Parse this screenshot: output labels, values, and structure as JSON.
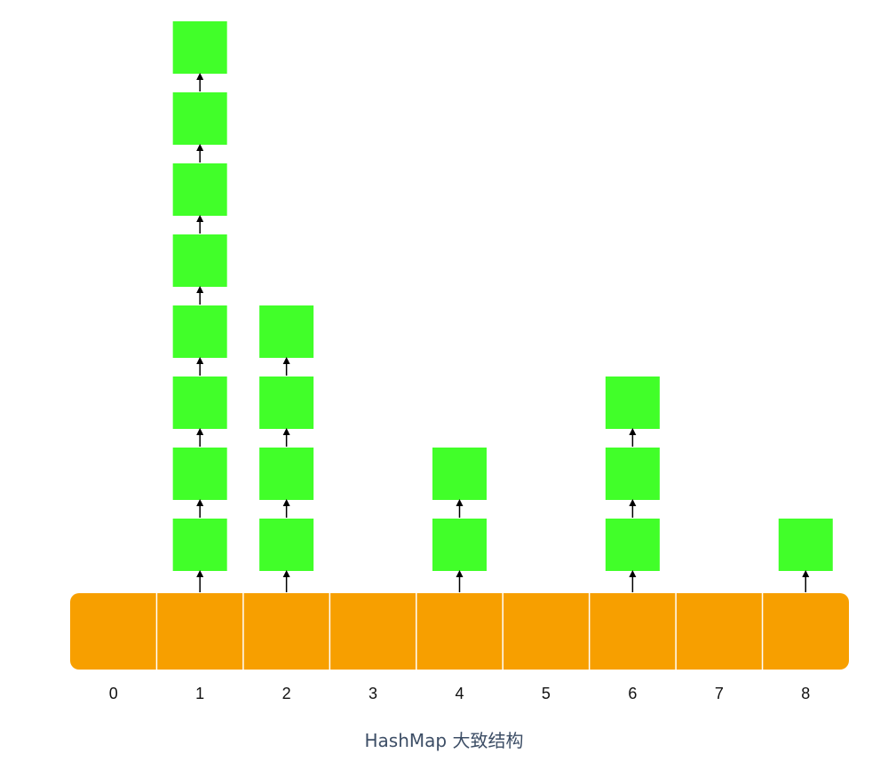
{
  "colors": {
    "array_fill": "#f79f00",
    "array_divider": "#ffffff",
    "node_fill": "#41ff29",
    "arrow": "#000000",
    "index_label": "#111111",
    "caption": "#3d4e66"
  },
  "array": {
    "indices": [
      "0",
      "1",
      "2",
      "3",
      "4",
      "5",
      "6",
      "7",
      "8"
    ]
  },
  "buckets": [
    {
      "index": "0",
      "node_count": 0
    },
    {
      "index": "1",
      "node_count": 8
    },
    {
      "index": "2",
      "node_count": 4
    },
    {
      "index": "3",
      "node_count": 0
    },
    {
      "index": "4",
      "node_count": 2
    },
    {
      "index": "5",
      "node_count": 0
    },
    {
      "index": "6",
      "node_count": 3
    },
    {
      "index": "7",
      "node_count": 0
    },
    {
      "index": "8",
      "node_count": 1
    }
  ],
  "caption": "HashMap 大致结构"
}
